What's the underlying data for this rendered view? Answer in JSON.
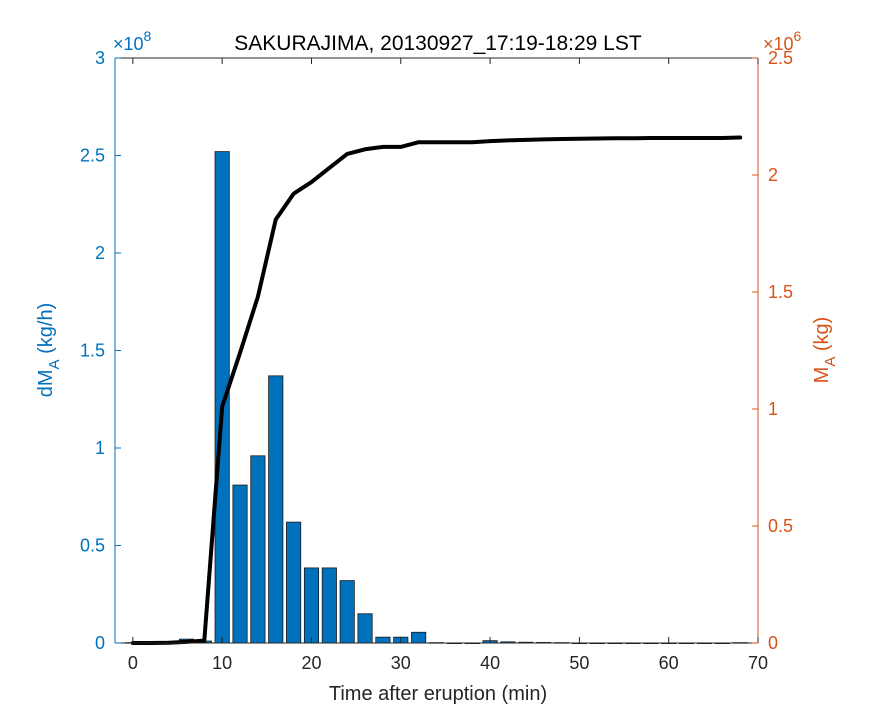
{
  "chart_data": {
    "type": "bar",
    "title": "SAKURAJIMA, 20130927_17:19-18:29 LST",
    "xlabel": "Time after eruption (min)",
    "xlim": [
      -2,
      70
    ],
    "x_ticks": [
      0,
      10,
      20,
      30,
      40,
      50,
      60,
      70
    ],
    "left_axis": {
      "label_base": "dM",
      "label_sub": "A",
      "label_rest": " (kg/h)",
      "exponent_base": "×10",
      "exponent": "8",
      "ylim": [
        0,
        3
      ],
      "ticks": [
        0,
        0.5,
        1,
        1.5,
        2,
        2.5,
        3
      ],
      "color": "#0072BD"
    },
    "right_axis": {
      "label_base": "M",
      "label_sub": "A",
      "label_rest": " (kg)",
      "exponent_base": "×10",
      "exponent": "6",
      "ylim": [
        0,
        2.5
      ],
      "ticks": [
        0,
        0.5,
        1,
        1.5,
        2,
        2.5
      ],
      "color": "#D95319"
    },
    "bars": {
      "color": "#0072BD",
      "bar_width": 1.6,
      "x": [
        0,
        2,
        4,
        6,
        8,
        10,
        12,
        14,
        16,
        18,
        20,
        22,
        24,
        26,
        28,
        30,
        32,
        34,
        36,
        38,
        40,
        42,
        44,
        46,
        48,
        50,
        52,
        54,
        56,
        58,
        60,
        62,
        64,
        66,
        68
      ],
      "values": [
        0.002,
        0.002,
        0.005,
        0.02,
        0.01,
        2.52,
        0.81,
        0.96,
        1.37,
        0.62,
        0.385,
        0.385,
        0.32,
        0.15,
        0.03,
        0.03,
        0.055,
        0.002,
        0,
        0,
        0.012,
        0.006,
        0.004,
        0.003,
        0.002,
        0,
        0,
        0,
        0,
        0,
        0,
        0,
        0,
        0,
        0.002
      ]
    },
    "line": {
      "color": "#000000",
      "x": [
        0,
        2,
        4,
        6,
        8,
        10,
        12,
        14,
        16,
        18,
        20,
        22,
        24,
        26,
        28,
        30,
        32,
        34,
        36,
        38,
        40,
        42,
        44,
        46,
        48,
        50,
        52,
        54,
        56,
        58,
        60,
        62,
        64,
        66,
        68
      ],
      "values": [
        0,
        0,
        0.001,
        0.005,
        0.01,
        1.01,
        1.24,
        1.48,
        1.81,
        1.92,
        1.97,
        2.03,
        2.09,
        2.11,
        2.12,
        2.12,
        2.14,
        2.14,
        2.14,
        2.14,
        2.145,
        2.148,
        2.15,
        2.152,
        2.154,
        2.155,
        2.156,
        2.157,
        2.157,
        2.158,
        2.158,
        2.158,
        2.158,
        2.158,
        2.16
      ]
    }
  }
}
